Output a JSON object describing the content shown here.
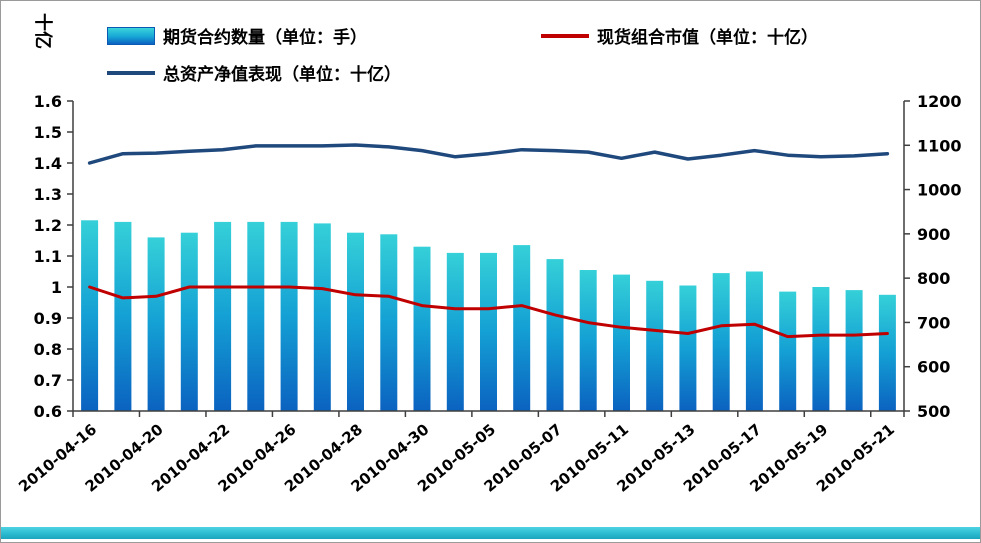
{
  "window": {
    "bottom_bar_color": "#29b9cf",
    "background": "#ffffff"
  },
  "chart_data": {
    "type": "bar",
    "subtype": "combo-bar-line-dual-axis",
    "title": "",
    "grid": false,
    "legend_position": "top",
    "n_points": 25,
    "y_left": {
      "label": "十亿",
      "min": 0.6,
      "max": 1.6,
      "ticks": [
        "1.6",
        "1.5",
        "1.4",
        "1.3",
        "1.2",
        "1.1",
        "1",
        "0.9",
        "0.8",
        "0.7",
        "0.6"
      ]
    },
    "y_right": {
      "min": 500,
      "max": 1200,
      "ticks": [
        "1200",
        "1100",
        "1000",
        "900",
        "800",
        "700",
        "600",
        "500"
      ]
    },
    "x_tick_labels": [
      "2010-04-16",
      "2010-04-20",
      "2010-04-22",
      "2010-04-26",
      "2010-04-28",
      "2010-04-30",
      "2010-05-05",
      "2010-05-07",
      "2010-05-11",
      "2010-05-13",
      "2010-05-17",
      "2010-05-19",
      "2010-05-21"
    ],
    "x_label_step": 2,
    "series": [
      {
        "name": "期货合约数量（单位：手）",
        "type": "bar",
        "axis": "left",
        "color_top": "#35d0d8",
        "color_mid": "#14a0d4",
        "color_bottom": "#0b62c0",
        "values": [
          1.215,
          1.21,
          1.16,
          1.175,
          1.21,
          1.21,
          1.21,
          1.205,
          1.175,
          1.17,
          1.13,
          1.11,
          1.11,
          1.135,
          1.09,
          1.055,
          1.04,
          1.02,
          1.005,
          1.045,
          1.05,
          0.985,
          1.0,
          0.99,
          0.975
        ]
      },
      {
        "name": "现货组合市值（单位：十亿）",
        "type": "line",
        "axis": "left",
        "color": "#c00000",
        "width": 3,
        "values": [
          1.0,
          0.965,
          0.97,
          1.0,
          1.0,
          1.0,
          1.0,
          0.995,
          0.975,
          0.97,
          0.94,
          0.93,
          0.93,
          0.94,
          0.91,
          0.885,
          0.87,
          0.86,
          0.85,
          0.875,
          0.88,
          0.84,
          0.845,
          0.845,
          0.85
        ]
      },
      {
        "name": "总资产净值表现（单位：十亿）",
        "type": "line",
        "axis": "left",
        "color": "#1f497d",
        "width": 3.5,
        "values": [
          1.4,
          1.43,
          1.432,
          1.438,
          1.443,
          1.455,
          1.455,
          1.455,
          1.458,
          1.452,
          1.44,
          1.42,
          1.43,
          1.443,
          1.44,
          1.435,
          1.415,
          1.435,
          1.413,
          1.425,
          1.44,
          1.425,
          1.42,
          1.423,
          1.43
        ]
      }
    ]
  }
}
